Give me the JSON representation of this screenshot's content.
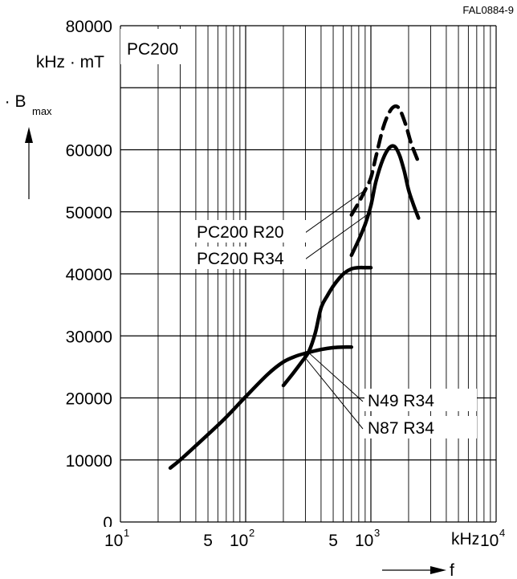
{
  "figure_code": "FAL0884-9",
  "chart_data": {
    "type": "line",
    "title": "PC200",
    "ylabel_prefix": "f · B",
    "ylabel_sub": "max",
    "yunit": "kHz · mT",
    "xlabel": "f",
    "xunit": "kHz",
    "x_scale": "log",
    "xlim": [
      10,
      10000
    ],
    "ylim": [
      0,
      80000
    ],
    "grid": true,
    "y_ticks": [
      "0",
      "10000",
      "20000",
      "30000",
      "40000",
      "50000",
      "60000",
      "80000"
    ],
    "x_tick_labels": [
      {
        "base": "10",
        "exp": "1",
        "value": 10
      },
      {
        "base": "5",
        "exp": "",
        "value": 50
      },
      {
        "base": "10",
        "exp": "2",
        "value": 100
      },
      {
        "base": "5",
        "exp": "",
        "value": 500
      },
      {
        "base": "10",
        "exp": "3",
        "value": 1000
      },
      {
        "base": "10",
        "exp": "4",
        "value": 10000
      }
    ],
    "series": [
      {
        "name": "PC200 R20",
        "style": "dashed",
        "x": [
          700,
          800,
          900,
          1000,
          1100,
          1250,
          1400,
          1550,
          1700,
          1900,
          2100,
          2400
        ],
        "y": [
          49500,
          51500,
          53500,
          55500,
          59000,
          63500,
          66000,
          67000,
          66500,
          64000,
          61000,
          58000
        ],
        "label_anchor": {
          "x": 870,
          "y": 53300
        }
      },
      {
        "name": "PC200 R34",
        "style": "solid",
        "x": [
          700,
          800,
          900,
          1000,
          1100,
          1250,
          1400,
          1550,
          1700,
          1850,
          2000,
          2200,
          2400
        ],
        "y": [
          43000,
          45500,
          48000,
          51000,
          55000,
          58500,
          60300,
          60500,
          59000,
          56500,
          53500,
          51000,
          49000
        ],
        "label_anchor": {
          "x": 930,
          "y": 49500
        }
      },
      {
        "name": "N49 R34",
        "style": "solid",
        "x": [
          200,
          240,
          280,
          320,
          360,
          400,
          450,
          500,
          560,
          620,
          700,
          800,
          900,
          1000
        ],
        "y": [
          22000,
          24000,
          25800,
          27500,
          30500,
          34500,
          36500,
          38000,
          39300,
          40200,
          40800,
          41000,
          41000,
          41000
        ],
        "label_anchor": {
          "x": 310,
          "y": 27500
        }
      },
      {
        "name": "N87 R34",
        "style": "solid",
        "x": [
          25,
          30,
          40,
          50,
          70,
          100,
          150,
          200,
          250,
          300,
          400,
          500,
          600,
          700
        ],
        "y": [
          8700,
          10000,
          12300,
          14100,
          16900,
          20200,
          23800,
          25800,
          26700,
          27200,
          27800,
          28100,
          28200,
          28200
        ],
        "label_anchor": {
          "x": 290,
          "y": 26800
        }
      }
    ]
  }
}
